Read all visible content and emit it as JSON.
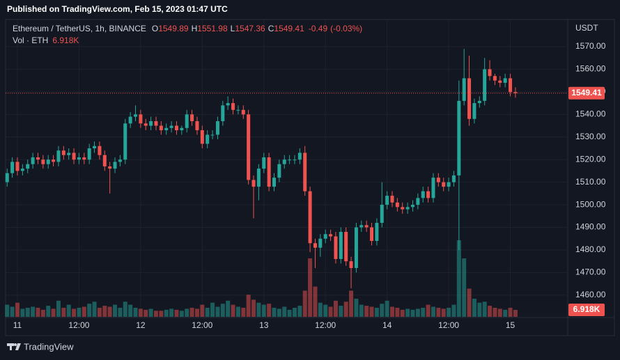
{
  "header": {
    "published": "Published on TradingView.com, Feb 15, 2023 01:47 UTC"
  },
  "footer": {
    "brand": "TradingView"
  },
  "chart_data": {
    "type": "candlestick",
    "symbol": "Ethereum / TetherUS, 1h, BINANCE",
    "ohlc_prefixes": [
      "O",
      "H",
      "L",
      "C"
    ],
    "change": -0.49,
    "change_pct": {
      "value": -0.03,
      "label": "(-0.03%)"
    },
    "volume_title": "Vol · ETH",
    "y_axis_title": "USDT",
    "up_color": "#26a69a",
    "down_color": "#ef5350",
    "categories": [
      null,
      null,
      "11",
      null,
      null,
      null,
      null,
      null,
      null,
      null,
      null,
      null,
      null,
      null,
      "12:00",
      null,
      null,
      null,
      null,
      null,
      null,
      null,
      null,
      null,
      null,
      null,
      "12",
      null,
      null,
      null,
      null,
      null,
      null,
      null,
      null,
      null,
      null,
      null,
      "12:00",
      null,
      null,
      null,
      null,
      null,
      null,
      null,
      null,
      null,
      null,
      null,
      "13",
      null,
      null,
      null,
      null,
      null,
      null,
      null,
      null,
      null,
      null,
      null,
      "12:00",
      null,
      null,
      null,
      null,
      null,
      null,
      null,
      null,
      null,
      null,
      null,
      "14",
      null,
      null,
      null,
      null,
      null,
      null,
      null,
      null,
      null,
      null,
      null,
      "12:00",
      null,
      null,
      null,
      null,
      null,
      null,
      null,
      null,
      null,
      null,
      null,
      "15",
      null
    ],
    "open": [
      1510,
      1514,
      1519,
      1515,
      1516,
      1518,
      1521,
      1520,
      1518,
      1520,
      1519,
      1524,
      1522,
      1523,
      1520,
      1521,
      1520,
      1525,
      1526,
      1522,
      1517,
      1516,
      1519,
      1520,
      1536,
      1539,
      1540,
      1536,
      1535,
      1537,
      1535,
      1533,
      1534,
      1535,
      1533,
      1534,
      1540,
      1537,
      1533,
      1527,
      1531,
      1531,
      1537,
      1544,
      1545,
      1542,
      1542,
      1540,
      1511,
      1508,
      1516,
      1521,
      1508,
      1512,
      1518,
      1520,
      1520,
      1520,
      1523,
      1506,
      1483,
      1481,
      1485,
      1487,
      1486,
      1476,
      1488,
      1475,
      1472,
      1490,
      1491,
      1490,
      1484,
      1492,
      1500,
      1504,
      1501,
      1499,
      1498,
      1499,
      1500,
      1503,
      1506,
      1503,
      1512,
      1510,
      1508,
      1510,
      1513,
      1546,
      1556,
      1538,
      1545,
      1546,
      1560,
      1557,
      1555,
      1554,
      1556,
      1549.89
    ],
    "high": [
      1516,
      1521,
      1521,
      1518,
      1520,
      1523,
      1523,
      1522,
      1522,
      1522,
      1526,
      1526,
      1525,
      1525,
      1523,
      1523,
      1527,
      1528,
      1528,
      1524,
      1519,
      1521,
      1522,
      1538,
      1541,
      1544,
      1542,
      1538,
      1539,
      1539,
      1537,
      1536,
      1537,
      1537,
      1535,
      1542,
      1542,
      1539,
      1535,
      1533,
      1533,
      1539,
      1546,
      1548,
      1547,
      1544,
      1544,
      1542,
      1513,
      1518,
      1523,
      1523,
      1514,
      1520,
      1522,
      1522,
      1522,
      1525,
      1526,
      1508,
      1485,
      1487,
      1489,
      1489,
      1488,
      1490,
      1490,
      1477,
      1492,
      1493,
      1493,
      1492,
      1494,
      1510,
      1506,
      1506,
      1503,
      1501,
      1501,
      1502,
      1505,
      1508,
      1508,
      1514,
      1514,
      1512,
      1512,
      1515,
      1555,
      1569,
      1566,
      1547,
      1548,
      1565,
      1564,
      1558,
      1557,
      1558,
      1558,
      1551.98
    ],
    "low": [
      1508,
      1512,
      1513,
      1513,
      1514,
      1516,
      1518,
      1516,
      1516,
      1517,
      1517,
      1520,
      1520,
      1518,
      1518,
      1518,
      1518,
      1523,
      1520,
      1515,
      1505,
      1514,
      1517,
      1518,
      1534,
      1537,
      1534,
      1533,
      1533,
      1533,
      1531,
      1531,
      1532,
      1531,
      1531,
      1532,
      1535,
      1531,
      1525,
      1525,
      1529,
      1529,
      1535,
      1542,
      1540,
      1540,
      1538,
      1509,
      1494,
      1502,
      1514,
      1506,
      1506,
      1510,
      1516,
      1518,
      1518,
      1518,
      1504,
      1479,
      1472,
      1477,
      1483,
      1484,
      1474,
      1474,
      1473,
      1463,
      1470,
      1488,
      1488,
      1482,
      1482,
      1490,
      1498,
      1499,
      1497,
      1496,
      1496,
      1497,
      1498,
      1501,
      1501,
      1501,
      1508,
      1506,
      1506,
      1508,
      1480,
      1544,
      1535,
      1536,
      1543,
      1544,
      1555,
      1553,
      1552,
      1552,
      1548,
      1547.36
    ],
    "close": [
      1514,
      1519,
      1515,
      1516,
      1518,
      1521,
      1520,
      1518,
      1520,
      1519,
      1524,
      1522,
      1523,
      1520,
      1521,
      1520,
      1525,
      1526,
      1522,
      1517,
      1516,
      1519,
      1520,
      1536,
      1539,
      1540,
      1536,
      1535,
      1537,
      1535,
      1533,
      1534,
      1535,
      1533,
      1534,
      1540,
      1537,
      1533,
      1527,
      1531,
      1531,
      1537,
      1544,
      1545,
      1542,
      1542,
      1540,
      1511,
      1508,
      1516,
      1521,
      1508,
      1512,
      1518,
      1520,
      1520,
      1520,
      1523,
      1506,
      1483,
      1481,
      1485,
      1487,
      1486,
      1476,
      1488,
      1475,
      1472,
      1490,
      1491,
      1490,
      1484,
      1492,
      1500,
      1504,
      1501,
      1499,
      1498,
      1499,
      1500,
      1503,
      1506,
      1503,
      1512,
      1510,
      1508,
      1510,
      1513,
      1546,
      1556,
      1538,
      1545,
      1546,
      1560,
      1557,
      1555,
      1554,
      1556,
      1549.89,
      1549.41
    ],
    "volume": {
      "values": [
        12,
        10,
        14,
        8,
        9,
        10,
        9,
        7,
        11,
        8,
        16,
        9,
        12,
        8,
        9,
        10,
        13,
        15,
        9,
        11,
        10,
        12,
        9,
        15,
        12,
        9,
        8,
        7,
        8,
        6,
        6,
        7,
        8,
        7,
        6,
        8,
        9,
        8,
        12,
        9,
        14,
        10,
        13,
        16,
        12,
        10,
        9,
        22,
        17,
        14,
        12,
        13,
        9,
        8,
        10,
        7,
        9,
        11,
        26,
        58,
        30,
        14,
        12,
        10,
        16,
        11,
        15,
        26,
        18,
        12,
        11,
        10,
        9,
        13,
        16,
        10,
        9,
        7,
        8,
        7,
        8,
        9,
        12,
        10,
        9,
        8,
        9,
        12,
        76,
        58,
        28,
        18,
        14,
        15,
        11,
        9,
        8,
        7,
        9,
        6.918
      ],
      "value_labels": [
        null,
        null,
        null,
        null,
        null,
        null,
        null,
        null,
        null,
        null,
        null,
        null,
        null,
        null,
        null,
        null,
        null,
        null,
        null,
        null,
        null,
        null,
        null,
        null,
        null,
        null,
        null,
        null,
        null,
        null,
        null,
        null,
        null,
        null,
        null,
        null,
        null,
        null,
        null,
        null,
        null,
        null,
        null,
        null,
        null,
        null,
        null,
        null,
        null,
        null,
        null,
        null,
        null,
        null,
        null,
        null,
        null,
        null,
        null,
        null,
        null,
        null,
        null,
        null,
        null,
        null,
        null,
        null,
        null,
        null,
        null,
        null,
        null,
        null,
        null,
        null,
        null,
        null,
        null,
        null,
        null,
        null,
        null,
        null,
        null,
        null,
        null,
        null,
        null,
        null,
        null,
        null,
        null,
        null,
        null,
        null,
        null,
        null,
        null,
        "6.918K"
      ]
    },
    "ylim": [
      1450.4,
      1581.4
    ],
    "yticks": [
      {
        "value": 1460,
        "label": "1460.00"
      },
      {
        "value": 1470,
        "label": "1470.00"
      },
      {
        "value": 1480,
        "label": "1480.00"
      },
      {
        "value": 1490,
        "label": "1490.00"
      },
      {
        "value": 1500,
        "label": "1500.00"
      },
      {
        "value": 1510,
        "label": "1510.00"
      },
      {
        "value": 1520,
        "label": "1520.00"
      },
      {
        "value": 1530,
        "label": "1530.00"
      },
      {
        "value": 1540,
        "label": "1540.00"
      },
      {
        "value": 1550,
        "label": "1550.00"
      },
      {
        "value": 1560,
        "label": "1560.00"
      },
      {
        "value": 1570,
        "label": "1570.00"
      }
    ],
    "grid": true
  }
}
